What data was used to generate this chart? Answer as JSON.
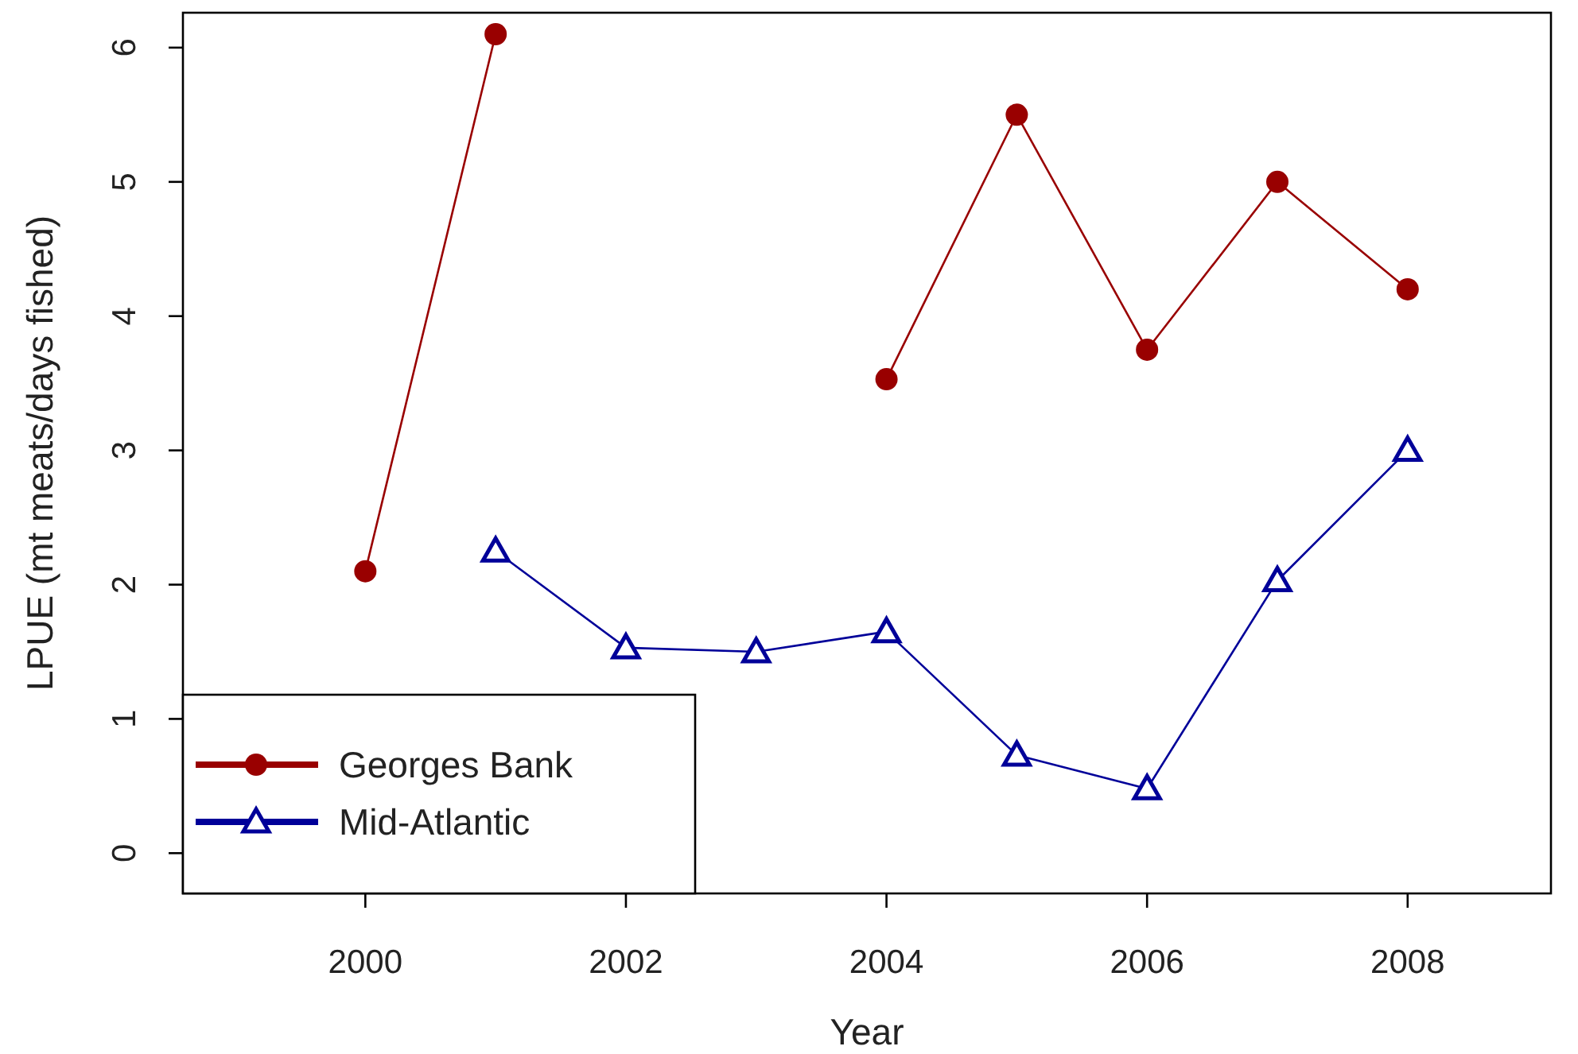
{
  "chart_data": {
    "type": "line",
    "xlabel": "Year",
    "ylabel": "LPUE (mt meats/days fished)",
    "x": [
      2000,
      2001,
      2002,
      2003,
      2004,
      2005,
      2006,
      2007,
      2008
    ],
    "series": [
      {
        "name": "Georges Bank",
        "color": "#990000",
        "marker": "circle",
        "values": [
          2.1,
          6.1,
          null,
          null,
          3.53,
          5.5,
          3.75,
          5.0,
          4.2
        ]
      },
      {
        "name": "Mid-Atlantic",
        "color": "#000099",
        "marker": "triangle",
        "values": [
          null,
          2.25,
          1.53,
          1.5,
          1.65,
          0.73,
          0.48,
          2.03,
          3.0
        ]
      }
    ],
    "xlim": [
      1998.6,
      2009.1
    ],
    "ylim": [
      -0.3,
      6.26
    ],
    "xticks": [
      2000,
      2002,
      2004,
      2006,
      2008
    ],
    "yticks": [
      0,
      1,
      2,
      3,
      4,
      5,
      6
    ],
    "grid": false,
    "legend": "bottom left",
    "line_style": "solid"
  }
}
